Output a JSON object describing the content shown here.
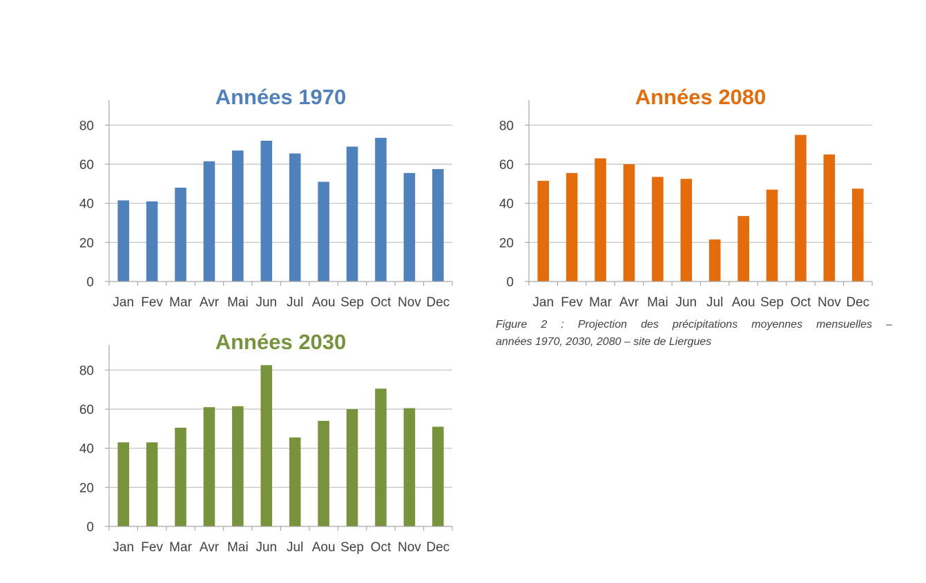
{
  "chart_data": [
    {
      "type": "bar",
      "title": "Années 1970",
      "xlabel": "",
      "ylabel": "",
      "categories": [
        "Jan",
        "Fev",
        "Mar",
        "Avr",
        "Mai",
        "Jun",
        "Jul",
        "Aou",
        "Sep",
        "Oct",
        "Nov",
        "Dec"
      ],
      "values": [
        41.5,
        41,
        48,
        61.5,
        67,
        72,
        65.5,
        51,
        69,
        73.5,
        55.5,
        57.5
      ],
      "yticks": [
        "0",
        "20",
        "40",
        "60",
        "80"
      ],
      "ylim": [
        0,
        90
      ],
      "grid": true,
      "color": "#4f81bd",
      "title_color": "#4f81bd"
    },
    {
      "type": "bar",
      "title": "Années 2080",
      "xlabel": "",
      "ylabel": "",
      "categories": [
        "Jan",
        "Fev",
        "Mar",
        "Avr",
        "Mai",
        "Jun",
        "Jul",
        "Aou",
        "Sep",
        "Oct",
        "Nov",
        "Dec"
      ],
      "values": [
        51.5,
        55.5,
        63,
        60,
        53.5,
        52.5,
        21.5,
        33.5,
        47,
        75,
        65,
        47.5
      ],
      "yticks": [
        "0",
        "20",
        "40",
        "60",
        "80"
      ],
      "ylim": [
        0,
        90
      ],
      "grid": true,
      "color": "#e46c0a",
      "title_color": "#e46c0a"
    },
    {
      "type": "bar",
      "title": "Années 2030",
      "xlabel": "",
      "ylabel": "",
      "categories": [
        "Jan",
        "Fev",
        "Mar",
        "Avr",
        "Mai",
        "Jun",
        "Jul",
        "Aou",
        "Sep",
        "Oct",
        "Nov",
        "Dec"
      ],
      "values": [
        43,
        43,
        50.5,
        61,
        61.5,
        82.5,
        45.5,
        54,
        60,
        70.5,
        60.5,
        51
      ],
      "yticks": [
        "0",
        "20",
        "40",
        "60",
        "80"
      ],
      "ylim": [
        0,
        90
      ],
      "grid": true,
      "color": "#77933c",
      "title_color": "#77933c"
    }
  ],
  "caption": {
    "line1": "Figure 2 : Projection des précipitations moyennes mensuelles –",
    "line2": "années 1970, 2030, 2080 – site de Liergues"
  },
  "style": {
    "axis_color": "#a6a6a6",
    "grid_color": "#bfbfbf",
    "tick_text_color": "#404040"
  }
}
